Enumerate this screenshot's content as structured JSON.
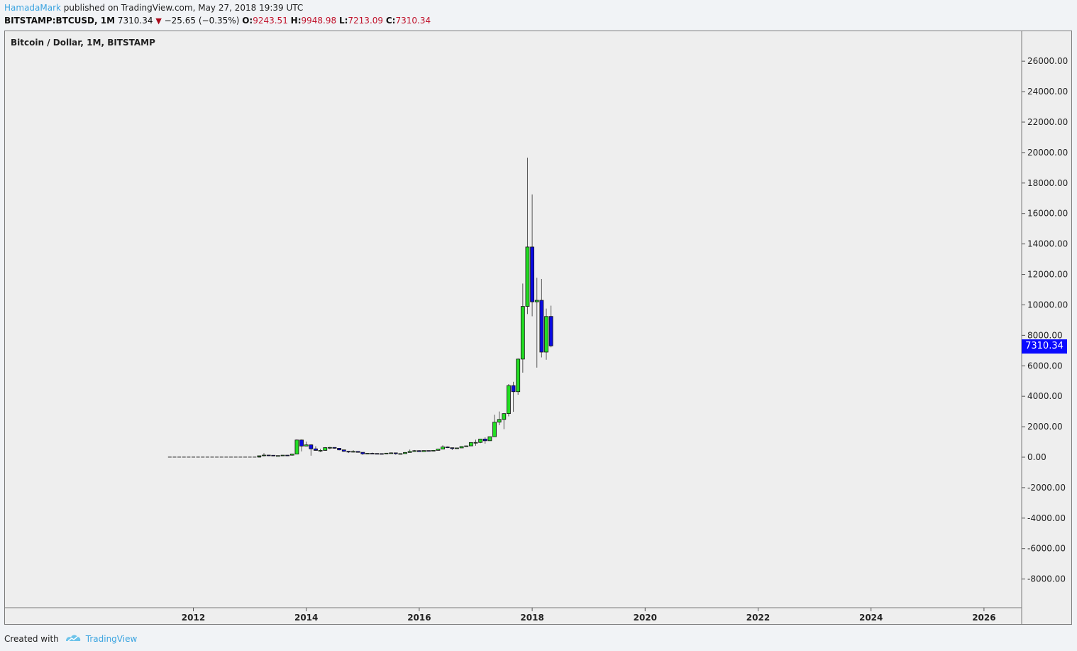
{
  "header": {
    "author": "HamadaMark",
    "published": " published on TradingView.com, May 27, 2018 19:39 UTC",
    "symbol": "BITSTAMP:BTCUSD, 1M",
    "last": "7310.34",
    "change": "−25.65 (−0.35%)",
    "o_label": "O:",
    "o_value": "9243.51",
    "h_label": "H:",
    "h_value": "9948.98",
    "l_label": "L:",
    "l_value": "7213.09",
    "c_label": "C:",
    "c_value": "7310.34"
  },
  "chart": {
    "title": "Bitcoin / Dollar, 1M, BITSTAMP",
    "price_tag": "7310.34"
  },
  "footer": {
    "created_with": "Created with",
    "brand": "TradingView"
  },
  "colors": {
    "up": "#22dd22",
    "down": "#0a0ae0",
    "tag": "#0a0aff",
    "background": "#eeeeee"
  },
  "chart_data": {
    "type": "candlestick",
    "title": "Bitcoin / Dollar, 1M, BITSTAMP",
    "ylim": [
      -9500,
      27000
    ],
    "y_ticks": [
      26000,
      24000,
      22000,
      20000,
      18000,
      16000,
      14000,
      12000,
      10000,
      8000,
      6000,
      4000,
      2000,
      0,
      -2000,
      -4000,
      -6000,
      -8000
    ],
    "y_tick_labels": [
      "26000.00",
      "24000.00",
      "22000.00",
      "20000.00",
      "18000.00",
      "16000.00",
      "14000.00",
      "12000.00",
      "10000.00",
      "8000.00",
      "6000.00",
      "4000.00",
      "2000.00",
      "0.00",
      "-2000.00",
      "-4000.00",
      "-6000.00",
      "-8000.00"
    ],
    "x_ticks": [
      2012,
      2014,
      2016,
      2018,
      2020,
      2022,
      2024,
      2026
    ],
    "x_tick_labels": [
      "2012",
      "2014",
      "2016",
      "2018",
      "2020",
      "2022",
      "2024",
      "2026"
    ],
    "grid": false,
    "last_price": 7310.34,
    "candles": [
      {
        "t": "2013-03",
        "o": 34,
        "h": 95,
        "l": 33,
        "c": 93
      },
      {
        "t": "2013-04",
        "o": 93,
        "h": 266,
        "l": 50,
        "c": 139
      },
      {
        "t": "2013-05",
        "o": 139,
        "h": 140,
        "l": 79,
        "c": 128
      },
      {
        "t": "2013-06",
        "o": 128,
        "h": 130,
        "l": 88,
        "c": 97
      },
      {
        "t": "2013-07",
        "o": 97,
        "h": 110,
        "l": 65,
        "c": 106
      },
      {
        "t": "2013-08",
        "o": 106,
        "h": 140,
        "l": 101,
        "c": 135
      },
      {
        "t": "2013-09",
        "o": 135,
        "h": 143,
        "l": 120,
        "c": 133
      },
      {
        "t": "2013-10",
        "o": 133,
        "h": 220,
        "l": 100,
        "c": 204
      },
      {
        "t": "2013-11",
        "o": 204,
        "h": 1163,
        "l": 196,
        "c": 1128
      },
      {
        "t": "2013-12",
        "o": 1128,
        "h": 1163,
        "l": 380,
        "c": 732
      },
      {
        "t": "2014-01",
        "o": 732,
        "h": 1025,
        "l": 732,
        "c": 810
      },
      {
        "t": "2014-02",
        "o": 810,
        "h": 850,
        "l": 100,
        "c": 549
      },
      {
        "t": "2014-03",
        "o": 549,
        "h": 720,
        "l": 430,
        "c": 445
      },
      {
        "t": "2014-04",
        "o": 445,
        "h": 550,
        "l": 340,
        "c": 446
      },
      {
        "t": "2014-05",
        "o": 446,
        "h": 660,
        "l": 420,
        "c": 627
      },
      {
        "t": "2014-06",
        "o": 627,
        "h": 680,
        "l": 525,
        "c": 640
      },
      {
        "t": "2014-07",
        "o": 640,
        "h": 650,
        "l": 564,
        "c": 587
      },
      {
        "t": "2014-08",
        "o": 587,
        "h": 605,
        "l": 450,
        "c": 480
      },
      {
        "t": "2014-09",
        "o": 480,
        "h": 490,
        "l": 355,
        "c": 387
      },
      {
        "t": "2014-10",
        "o": 387,
        "h": 412,
        "l": 275,
        "c": 338
      },
      {
        "t": "2014-11",
        "o": 338,
        "h": 460,
        "l": 314,
        "c": 378
      },
      {
        "t": "2014-12",
        "o": 378,
        "h": 386,
        "l": 300,
        "c": 320
      },
      {
        "t": "2015-01",
        "o": 320,
        "h": 320,
        "l": 152,
        "c": 218
      },
      {
        "t": "2015-02",
        "o": 218,
        "h": 265,
        "l": 212,
        "c": 254
      },
      {
        "t": "2015-03",
        "o": 254,
        "h": 300,
        "l": 238,
        "c": 244
      },
      {
        "t": "2015-04",
        "o": 244,
        "h": 261,
        "l": 214,
        "c": 236
      },
      {
        "t": "2015-05",
        "o": 236,
        "h": 248,
        "l": 228,
        "c": 230
      },
      {
        "t": "2015-06",
        "o": 230,
        "h": 268,
        "l": 220,
        "c": 264
      },
      {
        "t": "2015-07",
        "o": 264,
        "h": 318,
        "l": 253,
        "c": 284
      },
      {
        "t": "2015-08",
        "o": 284,
        "h": 286,
        "l": 162,
        "c": 230
      },
      {
        "t": "2015-09",
        "o": 230,
        "h": 245,
        "l": 224,
        "c": 236
      },
      {
        "t": "2015-10",
        "o": 236,
        "h": 336,
        "l": 236,
        "c": 311
      },
      {
        "t": "2015-11",
        "o": 311,
        "h": 502,
        "l": 310,
        "c": 377
      },
      {
        "t": "2015-12",
        "o": 377,
        "h": 470,
        "l": 350,
        "c": 430
      },
      {
        "t": "2016-01",
        "o": 430,
        "h": 465,
        "l": 350,
        "c": 368
      },
      {
        "t": "2016-02",
        "o": 368,
        "h": 445,
        "l": 365,
        "c": 437
      },
      {
        "t": "2016-03",
        "o": 437,
        "h": 440,
        "l": 395,
        "c": 416
      },
      {
        "t": "2016-04",
        "o": 416,
        "h": 470,
        "l": 411,
        "c": 448
      },
      {
        "t": "2016-05",
        "o": 448,
        "h": 550,
        "l": 436,
        "c": 531
      },
      {
        "t": "2016-06",
        "o": 531,
        "h": 780,
        "l": 515,
        "c": 671
      },
      {
        "t": "2016-07",
        "o": 671,
        "h": 705,
        "l": 600,
        "c": 622
      },
      {
        "t": "2016-08",
        "o": 622,
        "h": 625,
        "l": 465,
        "c": 572
      },
      {
        "t": "2016-09",
        "o": 572,
        "h": 620,
        "l": 565,
        "c": 608
      },
      {
        "t": "2016-10",
        "o": 608,
        "h": 720,
        "l": 605,
        "c": 700
      },
      {
        "t": "2016-11",
        "o": 700,
        "h": 755,
        "l": 680,
        "c": 742
      },
      {
        "t": "2016-12",
        "o": 742,
        "h": 975,
        "l": 740,
        "c": 963
      },
      {
        "t": "2017-01",
        "o": 963,
        "h": 1150,
        "l": 750,
        "c": 968
      },
      {
        "t": "2017-02",
        "o": 968,
        "h": 1210,
        "l": 920,
        "c": 1190
      },
      {
        "t": "2017-03",
        "o": 1190,
        "h": 1300,
        "l": 890,
        "c": 1080
      },
      {
        "t": "2017-04",
        "o": 1080,
        "h": 1350,
        "l": 1075,
        "c": 1347
      },
      {
        "t": "2017-05",
        "o": 1347,
        "h": 2790,
        "l": 1340,
        "c": 2300
      },
      {
        "t": "2017-06",
        "o": 2300,
        "h": 3000,
        "l": 2100,
        "c": 2480
      },
      {
        "t": "2017-07",
        "o": 2480,
        "h": 2900,
        "l": 1840,
        "c": 2860
      },
      {
        "t": "2017-08",
        "o": 2860,
        "h": 4800,
        "l": 2680,
        "c": 4700
      },
      {
        "t": "2017-09",
        "o": 4700,
        "h": 4950,
        "l": 2980,
        "c": 4300
      },
      {
        "t": "2017-10",
        "o": 4300,
        "h": 6480,
        "l": 4100,
        "c": 6440
      },
      {
        "t": "2017-11",
        "o": 6440,
        "h": 11400,
        "l": 5550,
        "c": 9900
      },
      {
        "t": "2017-12",
        "o": 9900,
        "h": 19666,
        "l": 9400,
        "c": 13800
      },
      {
        "t": "2018-01",
        "o": 13800,
        "h": 17250,
        "l": 9250,
        "c": 10200
      },
      {
        "t": "2018-02",
        "o": 10200,
        "h": 11780,
        "l": 5880,
        "c": 10300
      },
      {
        "t": "2018-03",
        "o": 10300,
        "h": 11700,
        "l": 6550,
        "c": 6900
      },
      {
        "t": "2018-04",
        "o": 6900,
        "h": 9760,
        "l": 6400,
        "c": 9240
      },
      {
        "t": "2018-05",
        "o": 9243.51,
        "h": 9948.98,
        "l": 7213.09,
        "c": 7310.34
      }
    ],
    "flat_segment": {
      "from": "2011-08",
      "to": "2013-03",
      "value": 5
    }
  }
}
